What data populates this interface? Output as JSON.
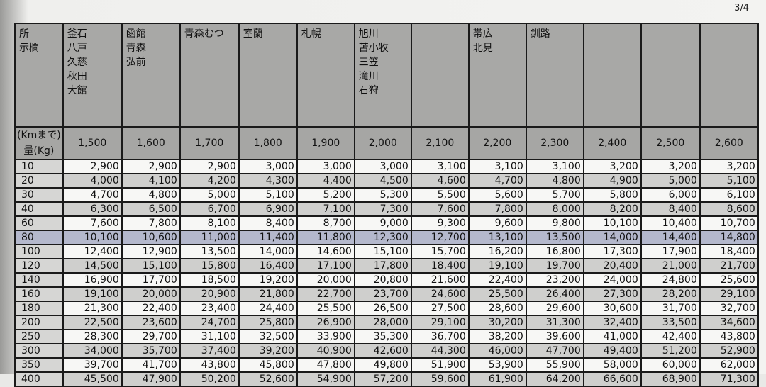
{
  "page_number": "3/4",
  "header": {
    "corner_label": "所\n示欄",
    "distance_label": "(Kmまで)",
    "weight_label": "量(Kg)",
    "destinations": [
      "釜石\n八戸\n久慈\n秋田\n大館",
      "函館\n青森\n弘前",
      "青森むつ",
      "室蘭",
      "札幌",
      "旭川\n苫小牧\n三笠\n滝川\n石狩",
      "",
      "帯広\n北見",
      "釧路",
      "",
      "",
      ""
    ]
  },
  "distances": [
    "1,500",
    "1,600",
    "1,700",
    "1,800",
    "1,900",
    "2,000",
    "2,100",
    "2,200",
    "2,300",
    "2,400",
    "2,500",
    "2,600"
  ],
  "highlight_color": "#b4b8cc",
  "rows": [
    {
      "weight": "10",
      "values": [
        "2,900",
        "2,900",
        "2,900",
        "3,000",
        "3,000",
        "3,000",
        "3,100",
        "3,100",
        "3,100",
        "3,200",
        "3,200",
        "3,200"
      ]
    },
    {
      "weight": "20",
      "values": [
        "4,000",
        "4,100",
        "4,200",
        "4,300",
        "4,400",
        "4,500",
        "4,600",
        "4,700",
        "4,800",
        "4,900",
        "5,000",
        "5,100"
      ]
    },
    {
      "weight": "30",
      "values": [
        "4,700",
        "4,800",
        "5,000",
        "5,100",
        "5,200",
        "5,300",
        "5,500",
        "5,600",
        "5,700",
        "5,800",
        "6,000",
        "6,100"
      ]
    },
    {
      "weight": "40",
      "values": [
        "6,300",
        "6,500",
        "6,700",
        "6,900",
        "7,100",
        "7,300",
        "7,600",
        "7,800",
        "8,000",
        "8,200",
        "8,400",
        "8,600"
      ]
    },
    {
      "weight": "60",
      "values": [
        "7,600",
        "7,800",
        "8,100",
        "8,400",
        "8,700",
        "9,000",
        "9,300",
        "9,600",
        "9,800",
        "10,100",
        "10,400",
        "10,700"
      ]
    },
    {
      "weight": "80",
      "highlighted": true,
      "values": [
        "10,100",
        "10,600",
        "11,000",
        "11,400",
        "11,800",
        "12,300",
        "12,700",
        "13,100",
        "13,500",
        "14,000",
        "14,400",
        "14,800"
      ]
    },
    {
      "weight": "100",
      "values": [
        "12,400",
        "12,900",
        "13,500",
        "14,000",
        "14,600",
        "15,100",
        "15,700",
        "16,200",
        "16,800",
        "17,300",
        "17,900",
        "18,400"
      ]
    },
    {
      "weight": "120",
      "values": [
        "14,500",
        "15,100",
        "15,800",
        "16,400",
        "17,100",
        "17,800",
        "18,400",
        "19,100",
        "19,700",
        "20,400",
        "21,000",
        "21,700"
      ]
    },
    {
      "weight": "140",
      "values": [
        "16,900",
        "17,700",
        "18,500",
        "19,200",
        "20,000",
        "20,800",
        "21,600",
        "22,400",
        "23,200",
        "24,000",
        "24,800",
        "25,600"
      ]
    },
    {
      "weight": "160",
      "values": [
        "19,100",
        "20,000",
        "20,900",
        "21,800",
        "22,700",
        "23,700",
        "24,600",
        "25,500",
        "26,400",
        "27,300",
        "28,200",
        "29,100"
      ]
    },
    {
      "weight": "180",
      "values": [
        "21,300",
        "22,400",
        "23,400",
        "24,400",
        "25,500",
        "26,500",
        "27,500",
        "28,600",
        "29,600",
        "30,600",
        "31,700",
        "32,700"
      ]
    },
    {
      "weight": "200",
      "values": [
        "22,500",
        "23,600",
        "24,700",
        "25,800",
        "26,900",
        "28,000",
        "29,100",
        "30,200",
        "31,300",
        "32,400",
        "33,500",
        "34,600"
      ]
    },
    {
      "weight": "250",
      "values": [
        "28,300",
        "29,700",
        "31,100",
        "32,500",
        "33,900",
        "35,300",
        "36,700",
        "38,200",
        "39,600",
        "41,000",
        "42,400",
        "43,800"
      ]
    },
    {
      "weight": "300",
      "values": [
        "34,000",
        "35,700",
        "37,400",
        "39,200",
        "40,900",
        "42,600",
        "44,300",
        "46,000",
        "47,700",
        "49,400",
        "51,200",
        "52,900"
      ]
    },
    {
      "weight": "350",
      "values": [
        "39,700",
        "41,700",
        "43,800",
        "45,800",
        "47,800",
        "49,800",
        "51,900",
        "53,900",
        "55,900",
        "58,000",
        "60,000",
        "62,000"
      ]
    },
    {
      "weight": "400",
      "values": [
        "45,500",
        "47,900",
        "50,200",
        "52,600",
        "54,900",
        "57,200",
        "59,600",
        "61,900",
        "64,200",
        "66,600",
        "68,900",
        "71,300"
      ]
    }
  ]
}
